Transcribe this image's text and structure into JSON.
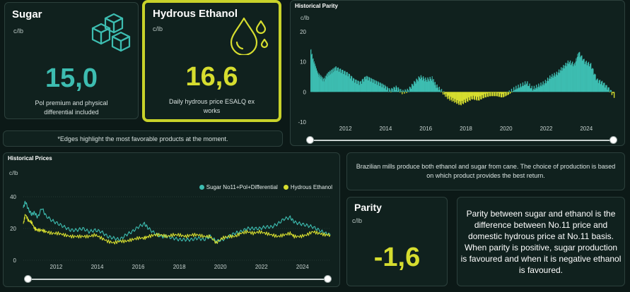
{
  "colors": {
    "sugar": "#3dbdb1",
    "ethanol": "#d6dd2f",
    "background": "#0c1917",
    "card": "#10211e",
    "highlight": "#c8d22a"
  },
  "sugar_card": {
    "title": "Sugar",
    "unit": "c/lb",
    "value": "15,0",
    "description_line1": "Pol premium and physical",
    "description_line2": "differential included",
    "icon": "sugar-cubes-icon"
  },
  "ethanol_card": {
    "title": "Hydrous Ethanol",
    "unit": "c/lb",
    "value": "16,6",
    "description_line1": "Daily hydrous price ESALQ ex",
    "description_line2": "works",
    "icon": "ethanol-drops-icon"
  },
  "edges_note": "*Edges highlight the most favorable products at the moment.",
  "production_note": "Brazilian mills produce both ethanol and sugar from cane. The choice of production is based on which product provides the best return.",
  "parity_card": {
    "title": "Parity",
    "unit": "c/lb",
    "value": "-1,6"
  },
  "parity_explanation": "Parity between sugar and ethanol is the difference between No.11 price and domestic hydrous price at No.11 basis. When parity is positive, sugar production is favoured and when it is negative ethanol is favoured.",
  "historical_parity": {
    "title": "Historical Parity",
    "unit": "c/lb",
    "y_ticks": [
      "20",
      "10",
      "0",
      "-10"
    ],
    "x_ticks": [
      "2012",
      "2014",
      "2016",
      "2018",
      "2020",
      "2022",
      "2024"
    ]
  },
  "historical_prices": {
    "title": "Historical Prices",
    "unit": "c/lb",
    "legend": [
      "Sugar No11+Pol+Differential",
      "Hydrous Ethanol"
    ],
    "y_ticks": [
      "40",
      "20",
      "0"
    ],
    "x_ticks": [
      "2012",
      "2014",
      "2016",
      "2018",
      "2020",
      "2022",
      "2024"
    ]
  },
  "chart_data": [
    {
      "type": "area",
      "title": "Historical Parity",
      "ylabel": "c/lb",
      "ylim": [
        -10,
        20
      ],
      "xlim": [
        2010.75,
        2025.9
      ],
      "x": [
        2010.75,
        2010.9,
        2011.0,
        2011.1,
        2011.25,
        2011.4,
        2011.6,
        2011.8,
        2012.0,
        2012.3,
        2012.6,
        2012.9,
        2013.2,
        2013.5,
        2013.8,
        2014.1,
        2014.4,
        2014.7,
        2015.0,
        2015.3,
        2015.6,
        2015.9,
        2016.2,
        2016.5,
        2016.8,
        2017.0,
        2017.3,
        2017.6,
        2017.9,
        2018.2,
        2018.5,
        2018.8,
        2019.1,
        2019.4,
        2019.7,
        2020.0,
        2020.3,
        2020.6,
        2020.9,
        2021.2,
        2021.5,
        2021.8,
        2022.1,
        2022.4,
        2022.7,
        2023.0,
        2023.3,
        2023.6,
        2023.9,
        2024.1,
        2024.4,
        2024.7,
        2025.0,
        2025.3,
        2025.6,
        2025.9
      ],
      "y": [
        14,
        10,
        8,
        6,
        5,
        4,
        6,
        7,
        8,
        7,
        6,
        4,
        3,
        5,
        4,
        3,
        2,
        0.5,
        1.5,
        0,
        0.5,
        3,
        5,
        4,
        4.5,
        2,
        0,
        -2,
        -3,
        -4,
        -3,
        -2,
        -2.5,
        -1.5,
        -1,
        -1,
        -1.5,
        -0.5,
        1,
        2,
        3,
        1,
        2,
        3,
        5,
        6,
        8,
        10,
        9,
        13,
        10,
        9,
        4,
        3,
        1,
        -1.5
      ]
    },
    {
      "type": "line",
      "title": "Historical Prices",
      "ylabel": "c/lb",
      "ylim": [
        0,
        40
      ],
      "xlim": [
        2010.9,
        2025.85
      ],
      "x": [
        2010.9,
        2011.0,
        2011.15,
        2011.3,
        2011.45,
        2011.6,
        2011.8,
        2012.0,
        2012.3,
        2012.6,
        2012.9,
        2013.2,
        2013.5,
        2013.8,
        2014.1,
        2014.4,
        2014.7,
        2015.0,
        2015.3,
        2015.6,
        2015.9,
        2016.2,
        2016.5,
        2016.8,
        2017.0,
        2017.3,
        2017.6,
        2017.9,
        2018.2,
        2018.5,
        2018.8,
        2019.1,
        2019.4,
        2019.7,
        2020.0,
        2020.3,
        2020.6,
        2020.9,
        2021.2,
        2021.5,
        2021.8,
        2022.1,
        2022.4,
        2022.7,
        2023.0,
        2023.3,
        2023.6,
        2023.9,
        2024.1,
        2024.4,
        2024.7,
        2025.0,
        2025.3,
        2025.6,
        2025.85
      ],
      "series": [
        {
          "name": "Sugar No11+Pol+Differential",
          "values": [
            33,
            37,
            32,
            29,
            30,
            27,
            33,
            28,
            25,
            23,
            21,
            19,
            19,
            20,
            18,
            19,
            18,
            15,
            14,
            13,
            16,
            18,
            21,
            23,
            20,
            17,
            15,
            15,
            14,
            13,
            13,
            13,
            14,
            13,
            15,
            12,
            13,
            15,
            17,
            18,
            20,
            20,
            20,
            21,
            21,
            23,
            26,
            27,
            24,
            23,
            22,
            21,
            19,
            17,
            16
          ]
        },
        {
          "name": "Hydrous Ethanol",
          "values": [
            23,
            29,
            25,
            24,
            20,
            19,
            19,
            18,
            17,
            17,
            16,
            15,
            15,
            15,
            15,
            16,
            14,
            12,
            11,
            12,
            12,
            13,
            14,
            14,
            15,
            16,
            16,
            15,
            16,
            16,
            15,
            16,
            16,
            15,
            15,
            11,
            14,
            15,
            15,
            17,
            18,
            17,
            18,
            17,
            16,
            15,
            16,
            17,
            15,
            15,
            16,
            18,
            17,
            16,
            16
          ]
        }
      ]
    }
  ]
}
